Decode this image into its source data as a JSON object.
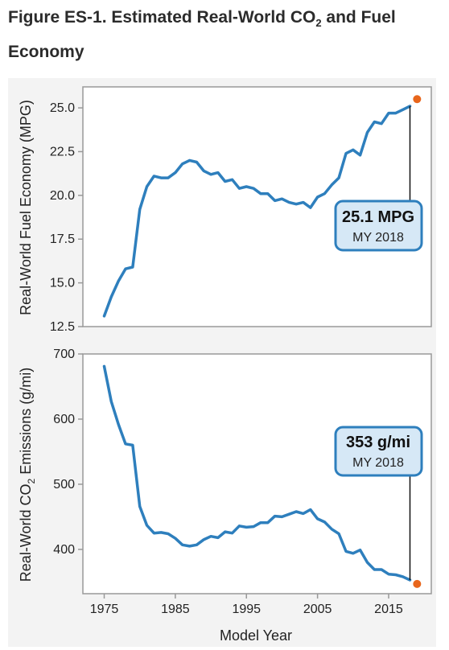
{
  "title": {
    "prefix": "Figure ES-1. Estimated Real-World CO",
    "sub": "2",
    "suffix": " and Fuel Economy"
  },
  "colors": {
    "line": "#2e7fbd",
    "marker": "#e8661c",
    "callout_fill": "#d6e8f6",
    "callout_border": "#2e7fbd"
  },
  "chart_data": [
    {
      "type": "line",
      "ylabel": "Real-World Fuel Economy (MPG)",
      "ylim": [
        12.5,
        26.2
      ],
      "yticks": [
        "25.0",
        "22.5",
        "20.0",
        "17.5",
        "15.0",
        "12.5"
      ],
      "ytick_values": [
        25.0,
        22.5,
        20.0,
        17.5,
        15.0,
        12.5
      ],
      "xlim": [
        1972,
        2021
      ],
      "x": [
        1975,
        1976,
        1977,
        1978,
        1979,
        1980,
        1981,
        1982,
        1983,
        1984,
        1985,
        1986,
        1987,
        1988,
        1989,
        1990,
        1991,
        1992,
        1993,
        1994,
        1995,
        1996,
        1997,
        1998,
        1999,
        2000,
        2001,
        2002,
        2003,
        2004,
        2005,
        2006,
        2007,
        2008,
        2009,
        2010,
        2011,
        2012,
        2013,
        2014,
        2015,
        2016,
        2017,
        2018
      ],
      "series": [
        {
          "values": [
            13.1,
            14.2,
            15.1,
            15.8,
            15.9,
            19.2,
            20.5,
            21.1,
            21.0,
            21.0,
            21.3,
            21.8,
            22.0,
            21.9,
            21.4,
            21.2,
            21.3,
            20.8,
            20.9,
            20.4,
            20.5,
            20.4,
            20.1,
            20.1,
            19.7,
            19.8,
            19.6,
            19.5,
            19.6,
            19.3,
            19.9,
            20.1,
            20.6,
            21.0,
            22.4,
            22.6,
            22.3,
            23.6,
            24.2,
            24.1,
            24.7,
            24.7,
            24.9,
            25.1
          ]
        }
      ],
      "marker": {
        "x": 2019,
        "y": 25.5
      },
      "callout": {
        "value": "25.1 MPG",
        "label": "MY 2018"
      }
    },
    {
      "type": "line",
      "ylabel_prefix": "Real-World CO",
      "ylabel_sub": "2",
      "ylabel_suffix": " Emissions (g/mi)",
      "ylim": [
        332,
        700
      ],
      "yticks": [
        "700",
        "600",
        "500",
        "400"
      ],
      "ytick_values": [
        700,
        600,
        500,
        400
      ],
      "xlim": [
        1972,
        2021
      ],
      "xticks": [
        "1975",
        "1985",
        "1995",
        "2005",
        "2015"
      ],
      "xtick_values": [
        1975,
        1985,
        1995,
        2005,
        2015
      ],
      "xlabel": "Model Year",
      "x": [
        1975,
        1976,
        1977,
        1978,
        1979,
        1980,
        1981,
        1982,
        1983,
        1984,
        1985,
        1986,
        1987,
        1988,
        1989,
        1990,
        1991,
        1992,
        1993,
        1994,
        1995,
        1996,
        1997,
        1998,
        1999,
        2000,
        2001,
        2002,
        2003,
        2004,
        2005,
        2006,
        2007,
        2008,
        2009,
        2010,
        2011,
        2012,
        2013,
        2014,
        2015,
        2016,
        2017,
        2018
      ],
      "series": [
        {
          "values": [
            681,
            627,
            592,
            562,
            560,
            466,
            437,
            425,
            426,
            424,
            417,
            407,
            405,
            407,
            415,
            420,
            418,
            427,
            425,
            436,
            434,
            435,
            441,
            441,
            451,
            450,
            454,
            458,
            455,
            461,
            447,
            442,
            431,
            424,
            397,
            394,
            399,
            380,
            369,
            369,
            362,
            361,
            358,
            353
          ]
        }
      ],
      "marker": {
        "x": 2019,
        "y": 347
      },
      "callout": {
        "value": "353 g/mi",
        "label": "MY 2018"
      }
    }
  ]
}
